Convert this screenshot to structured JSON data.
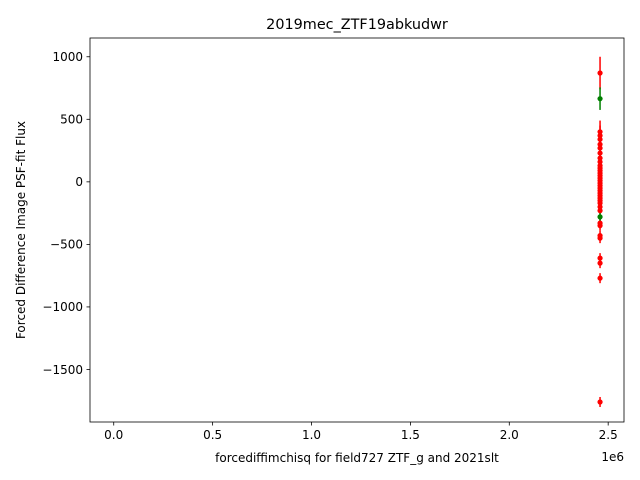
{
  "chart_data": {
    "type": "scatter",
    "title": "2019mec_ZTF19abkudwr",
    "xlabel": "forcediffimchisq for field727 ZTF_g and 2021slt",
    "ylabel": "Forced Difference Image PSF-fit Flux",
    "x_offset_label": "1e6",
    "xlim": [
      -120000,
      2580000
    ],
    "ylim": [
      -1920,
      1150
    ],
    "x_ticks": [
      0,
      500000,
      1000000,
      1500000,
      2000000,
      2500000
    ],
    "x_tick_labels": [
      "0.0",
      "0.5",
      "1.0",
      "1.5",
      "2.0",
      "2.5"
    ],
    "y_ticks": [
      -1500,
      -1000,
      -500,
      0,
      500,
      1000
    ],
    "y_tick_labels": [
      "−1500",
      "−1000",
      "−500",
      "0",
      "500",
      "1000"
    ],
    "grid": false,
    "legend": "none",
    "series": [
      {
        "color": "#ff0000",
        "points": [
          {
            "x": 2458900,
            "y": 870,
            "err": 130
          },
          {
            "x": 2458900,
            "y": 400,
            "err": 90
          },
          {
            "x": 2458900,
            "y": 370,
            "err": 80
          },
          {
            "x": 2458900,
            "y": 340,
            "err": 70
          },
          {
            "x": 2458900,
            "y": 300,
            "err": 60
          },
          {
            "x": 2458900,
            "y": 270,
            "err": 50
          },
          {
            "x": 2458900,
            "y": 230,
            "err": 50
          },
          {
            "x": 2458900,
            "y": 190,
            "err": 40
          },
          {
            "x": 2458900,
            "y": 160,
            "err": 40
          },
          {
            "x": 2458900,
            "y": 130,
            "err": 40
          },
          {
            "x": 2458900,
            "y": 110,
            "err": 30
          },
          {
            "x": 2458900,
            "y": 90,
            "err": 30
          },
          {
            "x": 2458900,
            "y": 70,
            "err": 30
          },
          {
            "x": 2458900,
            "y": 50,
            "err": 30
          },
          {
            "x": 2458900,
            "y": 30,
            "err": 30
          },
          {
            "x": 2458900,
            "y": 10,
            "err": 30
          },
          {
            "x": 2458900,
            "y": -10,
            "err": 30
          },
          {
            "x": 2458900,
            "y": -30,
            "err": 30
          },
          {
            "x": 2458900,
            "y": -50,
            "err": 30
          },
          {
            "x": 2458900,
            "y": -70,
            "err": 30
          },
          {
            "x": 2458900,
            "y": -90,
            "err": 30
          },
          {
            "x": 2458900,
            "y": -110,
            "err": 30
          },
          {
            "x": 2458900,
            "y": -130,
            "err": 30
          },
          {
            "x": 2458900,
            "y": -150,
            "err": 30
          },
          {
            "x": 2458900,
            "y": -170,
            "err": 30
          },
          {
            "x": 2458900,
            "y": -200,
            "err": 30
          },
          {
            "x": 2458900,
            "y": -230,
            "err": 30
          },
          {
            "x": 2458900,
            "y": -330,
            "err": 40
          },
          {
            "x": 2458900,
            "y": -350,
            "err": 40
          },
          {
            "x": 2458900,
            "y": -430,
            "err": 40
          },
          {
            "x": 2458900,
            "y": -450,
            "err": 40
          },
          {
            "x": 2458900,
            "y": -610,
            "err": 40
          },
          {
            "x": 2458900,
            "y": -650,
            "err": 40
          },
          {
            "x": 2458900,
            "y": -770,
            "err": 40
          },
          {
            "x": 2458900,
            "y": -1760,
            "err": 40
          }
        ]
      },
      {
        "color": "#008000",
        "points": [
          {
            "x": 2458900,
            "y": 665,
            "err": 90
          },
          {
            "x": 2458900,
            "y": -280,
            "err": 30
          }
        ]
      }
    ]
  }
}
